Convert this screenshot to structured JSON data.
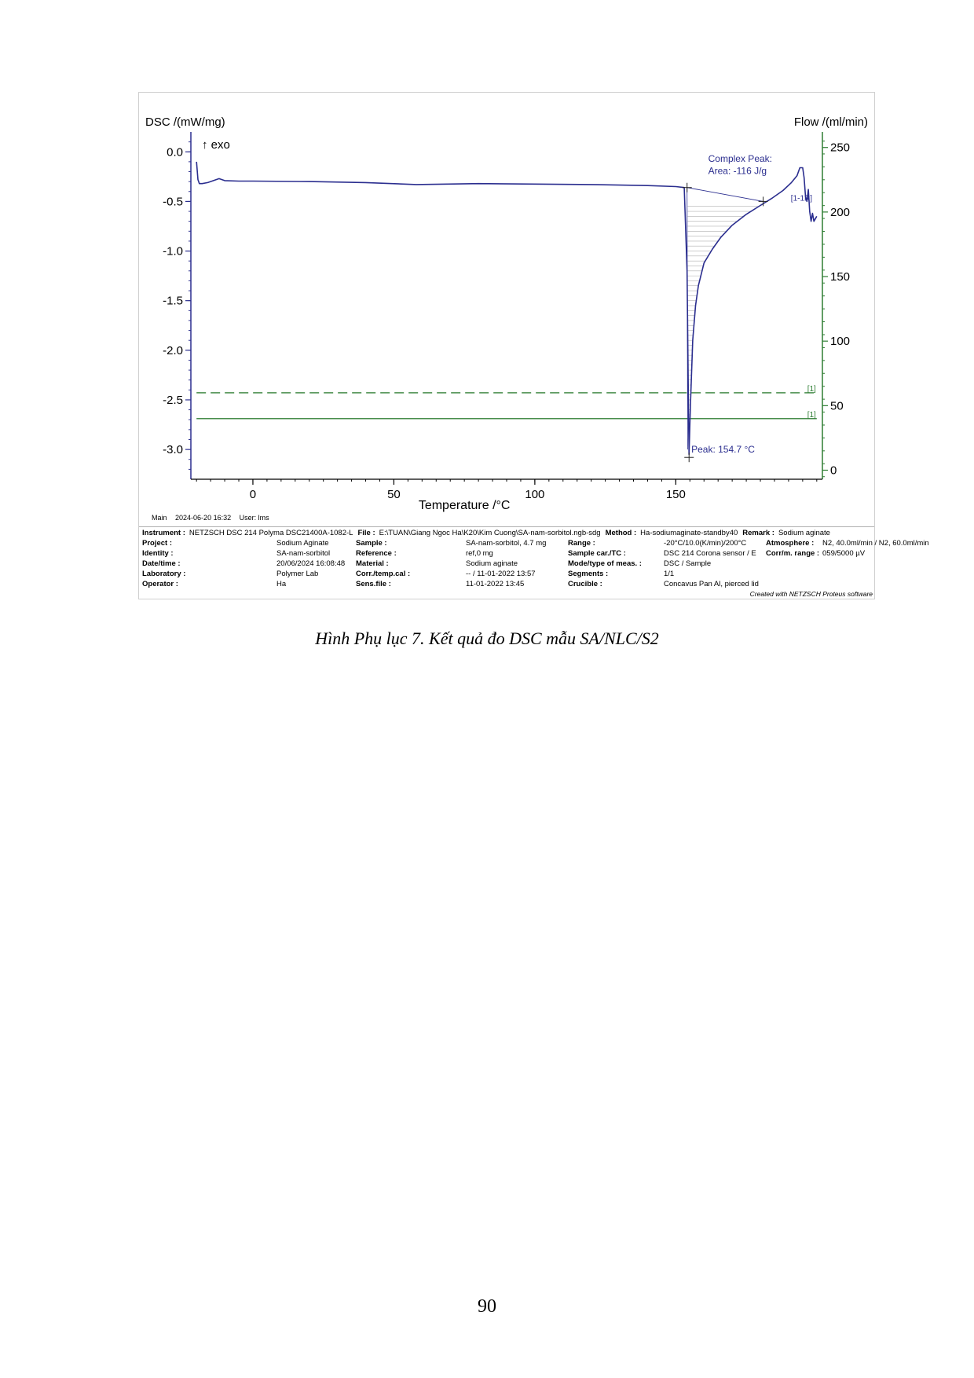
{
  "caption": "Hình Phụ lục 7. Kết quả đo DSC mẫu SA/NLC/S2",
  "page_number": "90",
  "chart_data": {
    "type": "line",
    "ylabel_left": "DSC /(mW/mg)",
    "ylabel_right": "Flow /(ml/min)",
    "exo_label": "↑ exo",
    "xlabel": "Temperature /°C",
    "xlim": [
      -22,
      202
    ],
    "ylim_left": [
      -3.3,
      0.2
    ],
    "ylim_right": [
      -7,
      262
    ],
    "x_ticks": [
      0,
      50,
      100,
      150
    ],
    "y_left_ticks": [
      0.0,
      -0.5,
      -1.0,
      -1.5,
      -2.0,
      -2.5,
      -3.0
    ],
    "y_left_tick_labels": [
      "0.0",
      "-0.5",
      "-1.0",
      "-1.5",
      "-2.0",
      "-2.5",
      "-3.0"
    ],
    "y_right_ticks": [
      0,
      50,
      100,
      150,
      200,
      250
    ],
    "colors": {
      "dsc": "#2b2e8f",
      "flow": "#2e7d32",
      "axis_left": "#2b2e8f",
      "axis_right": "#2e7d32"
    },
    "series": [
      {
        "axis": "left",
        "x": [
          -20,
          -19.5,
          -19,
          -18,
          -16,
          -14,
          -12,
          -10,
          -5,
          0,
          20,
          40,
          58,
          80,
          100,
          120,
          140,
          150,
          153,
          154,
          154.5,
          154.7,
          155.2,
          156,
          157,
          158,
          160,
          163,
          166,
          170,
          175,
          180,
          184,
          188,
          191,
          193,
          194,
          195,
          195.5,
          196,
          196.5,
          197,
          197.5,
          198,
          198.5,
          199,
          200
        ],
        "y": [
          -0.1,
          -0.28,
          -0.32,
          -0.32,
          -0.31,
          -0.29,
          -0.27,
          -0.29,
          -0.295,
          -0.295,
          -0.3,
          -0.31,
          -0.33,
          -0.32,
          -0.325,
          -0.33,
          -0.34,
          -0.35,
          -0.36,
          -1.2,
          -2.6,
          -3.05,
          -2.55,
          -1.9,
          -1.55,
          -1.35,
          -1.12,
          -0.98,
          -0.86,
          -0.74,
          -0.63,
          -0.54,
          -0.47,
          -0.39,
          -0.31,
          -0.24,
          -0.16,
          -0.16,
          -0.26,
          -0.45,
          -0.5,
          -0.38,
          -0.6,
          -0.7,
          -0.62,
          -0.7,
          -0.65
        ]
      },
      {
        "axis": "right",
        "style": "dashed",
        "x": [
          -20,
          200
        ],
        "y": [
          60,
          60
        ],
        "label": "[1]"
      },
      {
        "axis": "right",
        "style": "solid",
        "x": [
          -20,
          200
        ],
        "y": [
          40,
          40
        ],
        "label": "[1]"
      }
    ],
    "peak_integration": {
      "x_start": 154,
      "x_end": 181,
      "y_start": -0.36,
      "y_end": -0.5
    },
    "annotations": {
      "complex_peak": "Complex Peak:",
      "area": "Area: -116 J/g",
      "peak": "Peak: 154.7 °C",
      "curve_tag": "[1-1R]"
    }
  },
  "meta_line": {
    "main": "Main",
    "datetime": "2024-06-20 16:32",
    "user": "User: lms"
  },
  "info_head": {
    "instrument_label": "Instrument :",
    "instrument": "NETZSCH DSC 214 Polyma DSC21400A-1082-L",
    "file_label": "File :",
    "file": "E:\\TUAN\\Giang Ngoc Ha\\K20\\Kim Cuong\\SA-nam-sorbitol.ngb-sdg",
    "method_label": "Method :",
    "method": "Ha-sodiumaginate-standby40",
    "remark_label": "Remark :",
    "remark": "Sodium aginate"
  },
  "info_rows": [
    [
      "Project :",
      "Sodium Aginate",
      "Sample :",
      "SA-nam-sorbitol, 4.7 mg",
      "Range :",
      "-20°C/10.0(K/min)/200°C",
      "Atmosphere :",
      "N2, 40.0ml/min / N2, 60.0ml/min"
    ],
    [
      "Identity :",
      "SA-nam-sorbitol",
      "Reference :",
      "ref,0 mg",
      "Sample car./TC :",
      "DSC 214 Corona sensor / E",
      "Corr/m. range :",
      "059/5000 µV"
    ],
    [
      "Date/time :",
      "20/06/2024 16:08:48",
      "Material :",
      "Sodium aginate",
      "Mode/type of meas. :",
      "DSC / Sample",
      "",
      ""
    ],
    [
      "Laboratory :",
      "Polymer Lab",
      "Corr./temp.cal :",
      "-- / 11-01-2022 13:57",
      "Segments :",
      "1/1",
      "",
      ""
    ],
    [
      "Operator :",
      "Ha",
      "Sens.file :",
      "11-01-2022 13:45",
      "Crucible :",
      "Concavus Pan Al, pierced lid",
      "",
      ""
    ]
  ],
  "credit": "Created with NETZSCH Proteus software"
}
